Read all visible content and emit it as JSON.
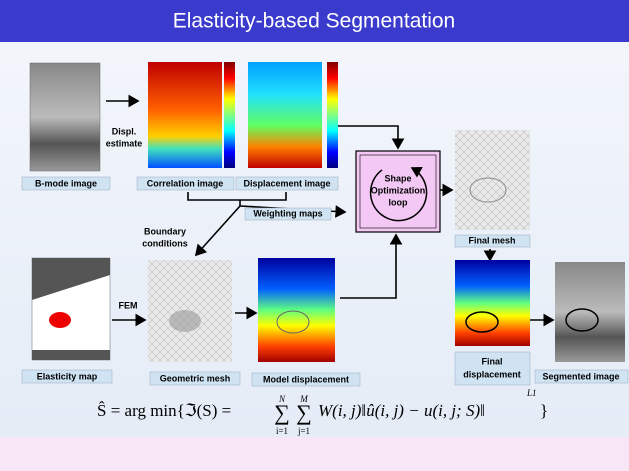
{
  "title": "Elasticity-based Segmentation",
  "labels": {
    "bmode": "B-mode image",
    "correlation": "Correlation image",
    "displacement": "Displacement image",
    "displ_estimate": [
      "Displ.",
      "estimate"
    ],
    "weighting_maps": "Weighting maps",
    "boundary_conditions": [
      "Boundary",
      "conditions"
    ],
    "shape_loop": [
      "Shape",
      "Optimization",
      "loop"
    ],
    "final_mesh": "Final mesh",
    "fem": "FEM",
    "elasticity_map": "Elasticity map",
    "geometric_mesh": "Geometric mesh",
    "model_displacement": "Model displacement",
    "final_displacement": [
      "Final",
      "displacement"
    ],
    "segmented_image": "Segmented image"
  },
  "formula": {
    "lhs": "Ŝ = arg min{ℑ(S) =",
    "sum1": {
      "symbol": "∑",
      "upper": "N",
      "lower": "i=1"
    },
    "sum2": {
      "symbol": "∑",
      "upper": "M",
      "lower": "j=1"
    },
    "body": "W(i, j)‖û(i, j) − u(i, j; S)‖",
    "power": "L1",
    "close": "}"
  }
}
